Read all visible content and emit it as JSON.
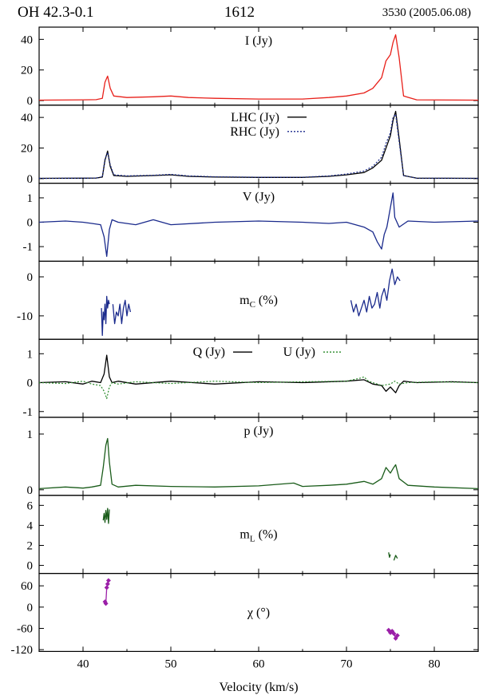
{
  "header": {
    "source": "OH 42.3-0.1",
    "frequency": "1612",
    "observation": "3530 (2005.06.08)"
  },
  "chart_data": {
    "type": "line",
    "xlabel": "Velocity (km/s)",
    "xlim": [
      35,
      85
    ],
    "xticks": [
      "40",
      "50",
      "60",
      "70",
      "80"
    ],
    "panels": [
      {
        "id": "stokes-i",
        "label": "I (Jy)",
        "ylim": [
          -3,
          48
        ],
        "yticks": [
          0,
          20,
          40
        ],
        "yticklabels": [
          "0",
          "20",
          "40"
        ],
        "series": [
          {
            "color": "#e8201a",
            "style": "solid",
            "x": [
              35,
              40,
              41.5,
              42.2,
              42.5,
              42.8,
              43.1,
              43.5,
              45,
              48,
              50,
              52,
              55,
              60,
              65,
              68,
              70,
              72,
              73,
              74,
              74.5,
              75,
              75.3,
              75.6,
              76,
              76.5,
              78,
              85
            ],
            "y": [
              0.3,
              0.5,
              0.6,
              1.5,
              12,
              16,
              8,
              3,
              2,
              2.5,
              3,
              2,
              1.5,
              1,
              1,
              2,
              3,
              5,
              8,
              15,
              26,
              30,
              38,
              43,
              28,
              3,
              0.5,
              0.3
            ]
          }
        ]
      },
      {
        "id": "circular",
        "label": "",
        "ylim": [
          -3,
          48
        ],
        "yticks": [
          0,
          20,
          40
        ],
        "yticklabels": [
          "0",
          "20",
          "40"
        ],
        "legend": [
          {
            "label": "LHC (Jy)",
            "color": "#000000",
            "style": "solid"
          },
          {
            "label": "RHC (Jy)",
            "color": "#1a2a8c",
            "style": "dotted"
          }
        ],
        "series": [
          {
            "color": "#000000",
            "style": "solid",
            "x": [
              35,
              40,
              41.5,
              42.2,
              42.5,
              42.8,
              43.1,
              43.5,
              45,
              48,
              50,
              52,
              55,
              60,
              65,
              68,
              70,
              72,
              73,
              74,
              74.5,
              75,
              75.3,
              75.6,
              76,
              76.5,
              78,
              85
            ],
            "y": [
              0.2,
              0.3,
              0.4,
              1,
              12,
              18,
              8,
              2,
              1.5,
              2,
              2.5,
              1.5,
              1,
              0.8,
              0.8,
              1.5,
              2.5,
              4,
              7,
              12,
              20,
              28,
              38,
              44,
              26,
              2,
              0.3,
              0.2
            ]
          },
          {
            "color": "#1a2a8c",
            "style": "dotted",
            "x": [
              35,
              40,
              41.5,
              42.2,
              42.5,
              42.8,
              43.1,
              43.5,
              45,
              48,
              50,
              52,
              55,
              60,
              65,
              68,
              70,
              72,
              73,
              74,
              74.5,
              75,
              75.3,
              75.6,
              76,
              76.5,
              78,
              85
            ],
            "y": [
              0.2,
              0.3,
              0.4,
              1.2,
              13,
              17,
              9,
              2.5,
              1.8,
              2.2,
              2.8,
              1.8,
              1.2,
              0.9,
              0.9,
              1.8,
              3,
              5,
              8,
              14,
              23,
              30,
              40,
              42,
              24,
              2,
              0.3,
              0.2
            ]
          }
        ]
      },
      {
        "id": "stokes-v",
        "label": "V (Jy)",
        "ylim": [
          -1.6,
          1.6
        ],
        "yticks": [
          -1,
          0,
          1
        ],
        "yticklabels": [
          "-1",
          "0",
          "1"
        ],
        "series": [
          {
            "color": "#1a2a8c",
            "style": "solid",
            "x": [
              35,
              38,
              40,
              41,
              42,
              42.4,
              42.7,
              43,
              43.3,
              44,
              46,
              48,
              50,
              55,
              60,
              65,
              68,
              70,
              72,
              73,
              73.5,
              74,
              74.3,
              74.6,
              75,
              75.3,
              75.5,
              76,
              77,
              80,
              85
            ],
            "y": [
              0,
              0.05,
              0,
              -0.05,
              -0.1,
              -0.6,
              -1.4,
              -0.3,
              0.1,
              0,
              -0.1,
              0.1,
              -0.1,
              0,
              0.05,
              0,
              -0.05,
              0,
              -0.2,
              -0.4,
              -0.8,
              -1.1,
              -0.5,
              -0.2,
              0.6,
              1.2,
              0.2,
              -0.2,
              0.05,
              0,
              0.05
            ]
          }
        ]
      },
      {
        "id": "mc",
        "label": "mC (%)",
        "ylim": [
          -16,
          4
        ],
        "yticks": [
          -10,
          0
        ],
        "yticklabels": [
          "-10",
          "0"
        ],
        "series": [
          {
            "color": "#1a2a8c",
            "style": "solid",
            "x": [
              42.1,
              42.2,
              42.3,
              42.4,
              42.5,
              42.6,
              42.7,
              42.8,
              42.9,
              43
            ],
            "y": [
              -8,
              -15,
              -9,
              -11,
              -7,
              -12,
              -5,
              -8,
              -6,
              -7
            ]
          },
          {
            "color": "#1a2a8c",
            "style": "solid",
            "x": [
              43.4,
              43.6,
              43.8,
              44,
              44.2,
              44.4,
              44.6,
              44.8,
              45,
              45.2,
              45.4
            ],
            "y": [
              -7,
              -12,
              -9,
              -10,
              -7,
              -12,
              -8,
              -6,
              -10,
              -7,
              -9
            ]
          },
          {
            "color": "#1a2a8c",
            "style": "solid",
            "x": [
              70.5,
              70.8,
              71.1,
              71.4,
              71.7,
              72,
              72.3,
              72.6,
              72.9,
              73.2,
              73.5,
              73.8,
              74,
              74.3,
              74.6,
              74.9,
              75.2,
              75.5,
              75.8,
              76.1
            ],
            "y": [
              -6,
              -9,
              -7,
              -10,
              -8,
              -6,
              -9,
              -5,
              -8,
              -7,
              -4,
              -8,
              -5,
              -3,
              -6,
              -1,
              2,
              -2,
              0,
              -1
            ]
          }
        ]
      },
      {
        "id": "stokes-qu",
        "label": "",
        "ylim": [
          -1.2,
          1.5
        ],
        "yticks": [
          -1,
          0,
          1
        ],
        "yticklabels": [
          "-1",
          "0",
          "1"
        ],
        "legend": [
          {
            "label": "Q (Jy)",
            "color": "#000000",
            "style": "solid"
          },
          {
            "label": "U (Jy)",
            "color": "#2a8a2a",
            "style": "dotted"
          }
        ],
        "series": [
          {
            "color": "#000000",
            "style": "solid",
            "x": [
              35,
              38,
              40,
              41,
              42,
              42.4,
              42.7,
              43,
              43.3,
              44,
              46,
              50,
              55,
              60,
              65,
              70,
              72,
              73,
              74,
              74.5,
              75,
              75.3,
              75.6,
              76,
              76.5,
              78,
              82,
              85
            ],
            "y": [
              0,
              0.03,
              -0.05,
              0.05,
              0,
              0.3,
              0.95,
              0.2,
              0,
              0.05,
              -0.05,
              0.05,
              -0.05,
              0.03,
              0,
              0.05,
              0.1,
              -0.05,
              -0.1,
              -0.3,
              -0.15,
              -0.25,
              -0.35,
              -0.1,
              0.05,
              0,
              0.03,
              0
            ]
          },
          {
            "color": "#2a8a2a",
            "style": "dotted",
            "x": [
              35,
              38,
              40,
              41,
              42,
              42.4,
              42.7,
              43,
              43.3,
              44,
              46,
              50,
              55,
              60,
              65,
              70,
              71.5,
              72,
              72.5,
              73,
              74,
              75,
              75.5,
              76,
              77,
              80,
              85
            ],
            "y": [
              0,
              -0.03,
              0.05,
              -0.05,
              -0.1,
              -0.3,
              -0.55,
              -0.15,
              0,
              -0.05,
              0.03,
              -0.03,
              0.05,
              0,
              0.03,
              0.05,
              0.15,
              0.2,
              0.05,
              0,
              -0.1,
              -0.05,
              0.05,
              -0.05,
              0,
              0.03,
              0
            ]
          }
        ]
      },
      {
        "id": "polarized",
        "label": "p (Jy)",
        "ylim": [
          -0.1,
          1.3
        ],
        "yticks": [
          0,
          1
        ],
        "yticklabels": [
          "0",
          "1"
        ],
        "series": [
          {
            "color": "#1a5c1a",
            "style": "solid",
            "x": [
              35,
              38,
              40,
              41,
              42,
              42.3,
              42.6,
              42.8,
              43,
              43.3,
              44,
              46,
              50,
              55,
              60,
              64,
              65,
              68,
              70,
              72,
              73,
              74,
              74.5,
              75,
              75.3,
              75.6,
              76,
              77,
              80,
              85
            ],
            "y": [
              0.02,
              0.05,
              0.03,
              0.05,
              0.08,
              0.4,
              0.8,
              0.92,
              0.5,
              0.1,
              0.05,
              0.08,
              0.06,
              0.05,
              0.07,
              0.12,
              0.06,
              0.08,
              0.1,
              0.15,
              0.1,
              0.2,
              0.4,
              0.3,
              0.38,
              0.45,
              0.2,
              0.08,
              0.05,
              0.02
            ]
          }
        ]
      },
      {
        "id": "ml",
        "label": "mL (%)",
        "ylim": [
          -0.8,
          7
        ],
        "yticks": [
          0,
          2,
          4,
          6
        ],
        "yticklabels": [
          "0",
          "2",
          "4",
          "6"
        ],
        "series": [
          {
            "color": "#1a5c1a",
            "style": "solid",
            "x": [
              42.3,
              42.4,
              42.5,
              42.6,
              42.7,
              42.8,
              42.9,
              43
            ],
            "y": [
              4.5,
              5.2,
              4.3,
              5.5,
              4.6,
              5.7,
              4.2,
              5.6
            ]
          },
          {
            "color": "#1a5c1a",
            "style": "solid",
            "x": [
              74.8,
              74.9,
              75
            ],
            "y": [
              1.3,
              0.8,
              1.1
            ]
          },
          {
            "color": "#1a5c1a",
            "style": "solid",
            "x": [
              75.4,
              75.6,
              75.8
            ],
            "y": [
              0.5,
              1,
              0.7
            ]
          }
        ]
      },
      {
        "id": "chi",
        "label": "χ (°)",
        "ylim": [
          -125,
          95
        ],
        "yticks": [
          -120,
          -60,
          0,
          60
        ],
        "yticklabels": [
          "-120",
          "-60",
          "0",
          "60"
        ],
        "markers": true,
        "series": [
          {
            "color": "#9b1fa8",
            "style": "solid",
            "x": [
              42.5,
              42.6,
              42.7,
              42.8,
              42.9
            ],
            "y": [
              15,
              10,
              55,
              65,
              75
            ]
          },
          {
            "color": "#9b1fa8",
            "style": "solid",
            "x": [
              74.8,
              75,
              75.2
            ],
            "y": [
              -65,
              -72,
              -68
            ]
          },
          {
            "color": "#9b1fa8",
            "style": "solid",
            "x": [
              75.4,
              75.6,
              75.8
            ],
            "y": [
              -75,
              -88,
              -80
            ]
          }
        ]
      }
    ]
  }
}
